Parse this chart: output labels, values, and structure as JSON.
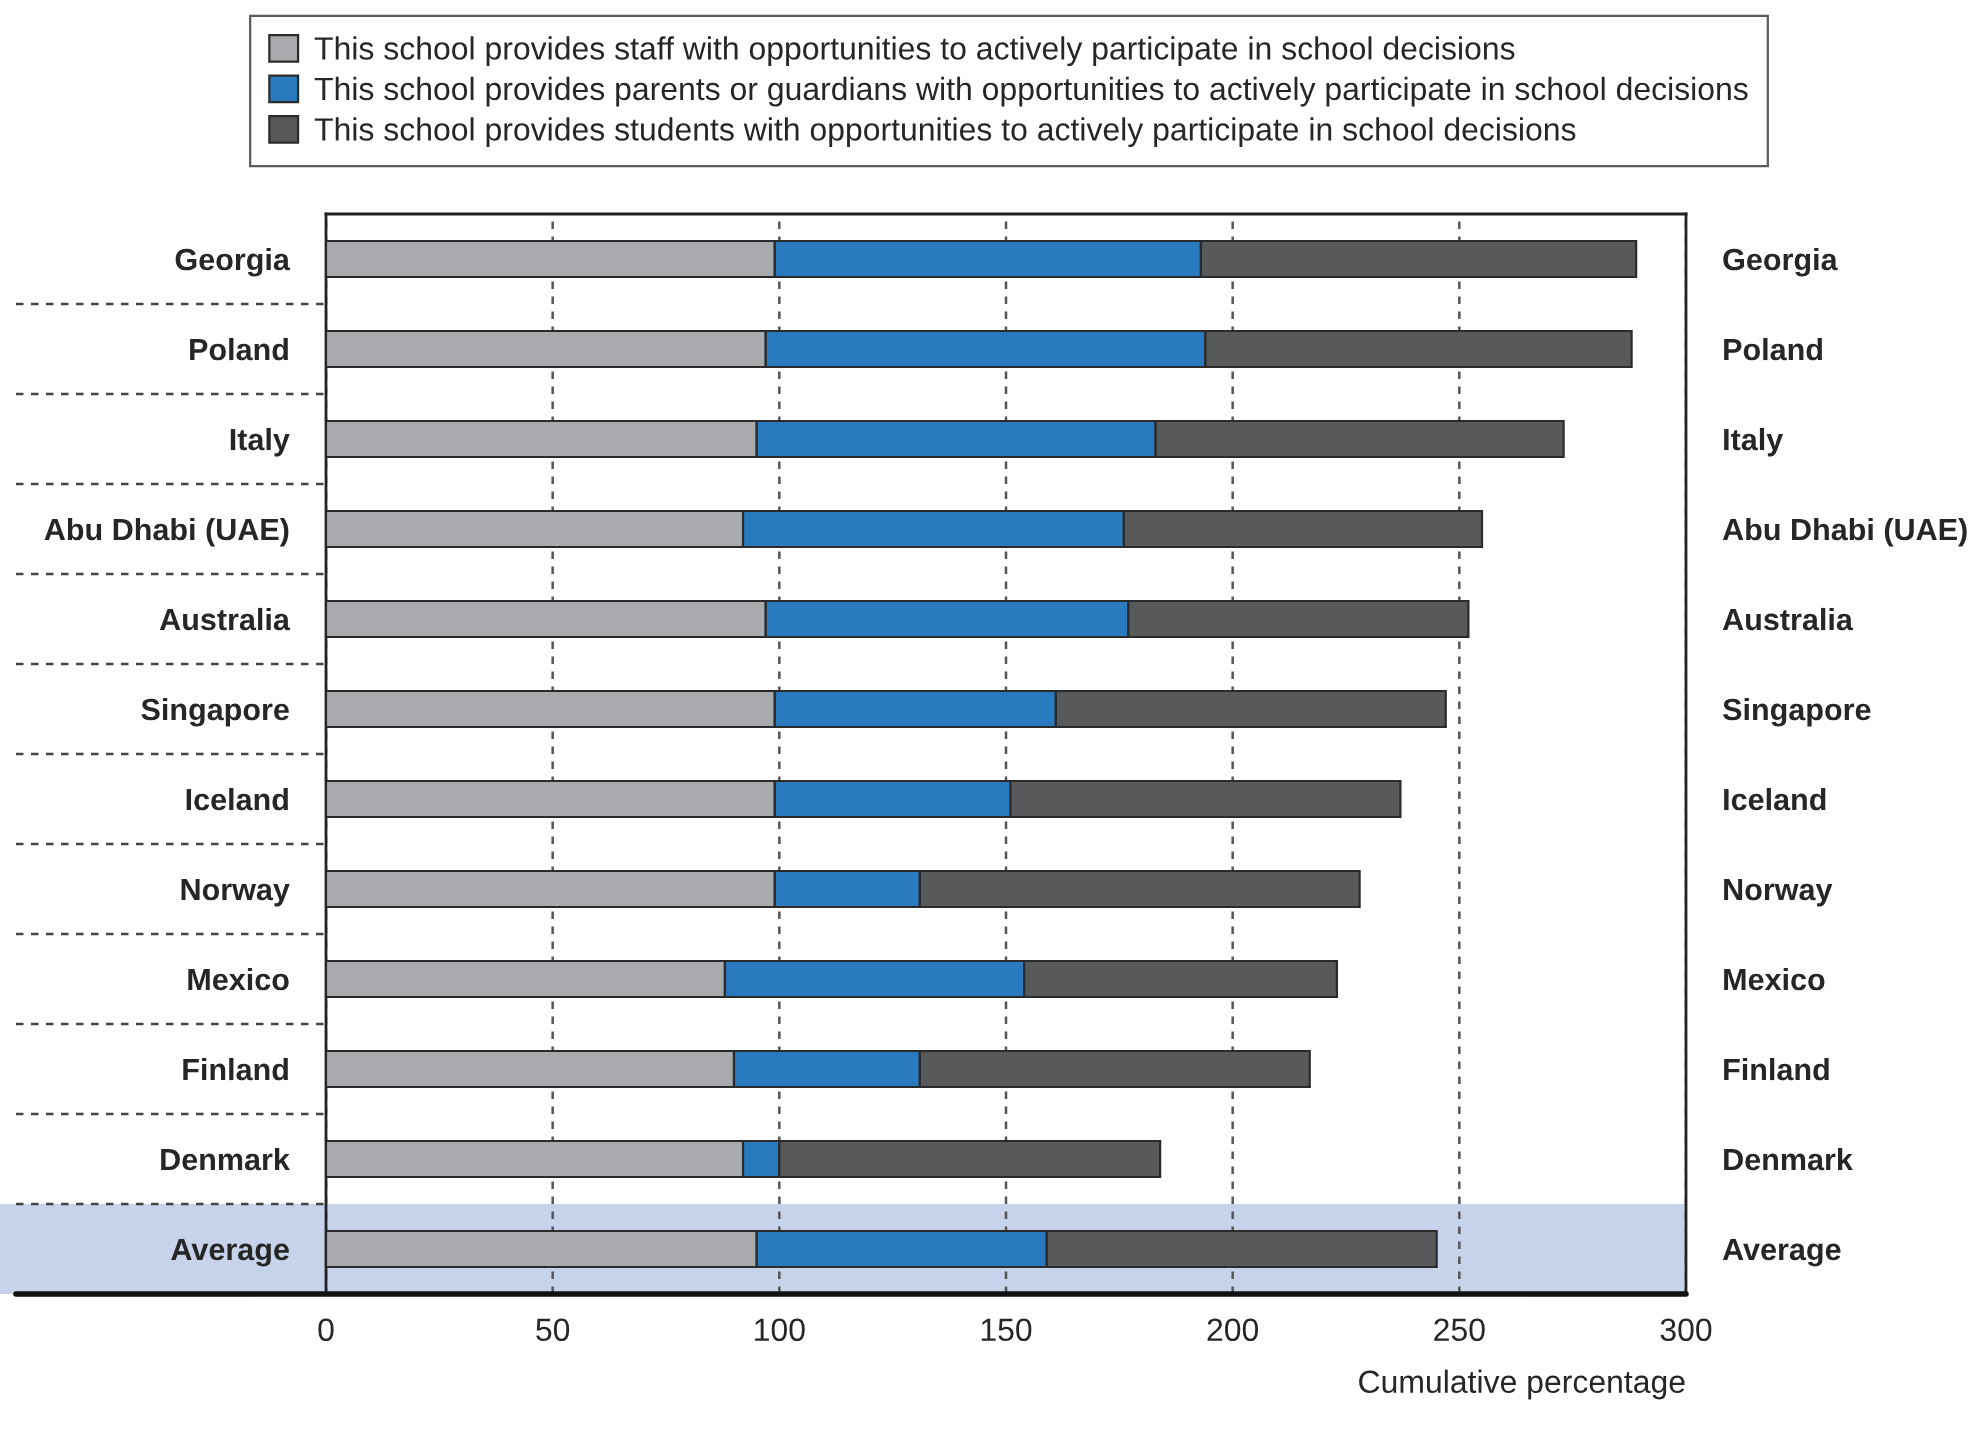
{
  "chart_data": {
    "type": "bar",
    "orientation": "horizontal",
    "stacked": true,
    "categories": [
      "Georgia",
      "Poland",
      "Italy",
      "Abu Dhabi (UAE)",
      "Australia",
      "Singapore",
      "Iceland",
      "Norway",
      "Mexico",
      "Finland",
      "Denmark",
      "Average"
    ],
    "series": [
      {
        "name": "This school provides staff with opportunities to actively participate in school decisions",
        "color": "#a9aaad",
        "values": [
          99,
          97,
          95,
          92,
          97,
          99,
          99,
          99,
          88,
          90,
          92,
          95
        ]
      },
      {
        "name": "This school provides parents or guardians with opportunities to actively participate in school decisions",
        "color": "#2a7abf",
        "values": [
          94,
          97,
          88,
          84,
          80,
          62,
          52,
          32,
          66,
          41,
          8,
          64
        ]
      },
      {
        "name": "This school provides students with opportunities to actively participate in school decisions",
        "color": "#58595b",
        "values": [
          96,
          94,
          90,
          79,
          75,
          86,
          86,
          97,
          69,
          86,
          84,
          86
        ]
      }
    ],
    "xlabel": "Cumulative percentage",
    "xlim": [
      0,
      300
    ],
    "xticks": [
      0,
      50,
      100,
      150,
      200,
      250,
      300
    ],
    "grid": "x",
    "legend": "top",
    "bands": [
      {
        "axis": "y",
        "from": "Average",
        "to": "Average",
        "color": "#c7d3ea"
      }
    ]
  }
}
